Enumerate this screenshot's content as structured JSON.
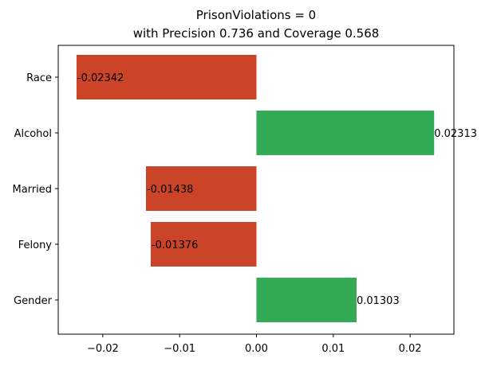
{
  "chart_data": {
    "type": "bar",
    "orientation": "horizontal",
    "title_line1": "PrisonViolations = 0",
    "title_line2": "with Precision 0.736 and Coverage 0.568",
    "xlabel": "",
    "ylabel": "",
    "categories": [
      "Race",
      "Alcohol",
      "Married",
      "Felony",
      "Gender"
    ],
    "values": [
      -0.02342,
      0.02313,
      -0.01438,
      -0.01376,
      0.01303
    ],
    "value_labels": [
      "-0.02342",
      "0.02313",
      "-0.01438",
      "-0.01376",
      "0.01303"
    ],
    "xlim": [
      -0.0258,
      0.0257
    ],
    "xticks": [
      -0.02,
      -0.01,
      0.0,
      0.01,
      0.02
    ],
    "xtick_labels": [
      "−0.02",
      "−0.01",
      "0.00",
      "0.01",
      "0.02"
    ],
    "grid": false,
    "colors": {
      "positive": "#33aa55",
      "negative": "#cc4428"
    }
  }
}
